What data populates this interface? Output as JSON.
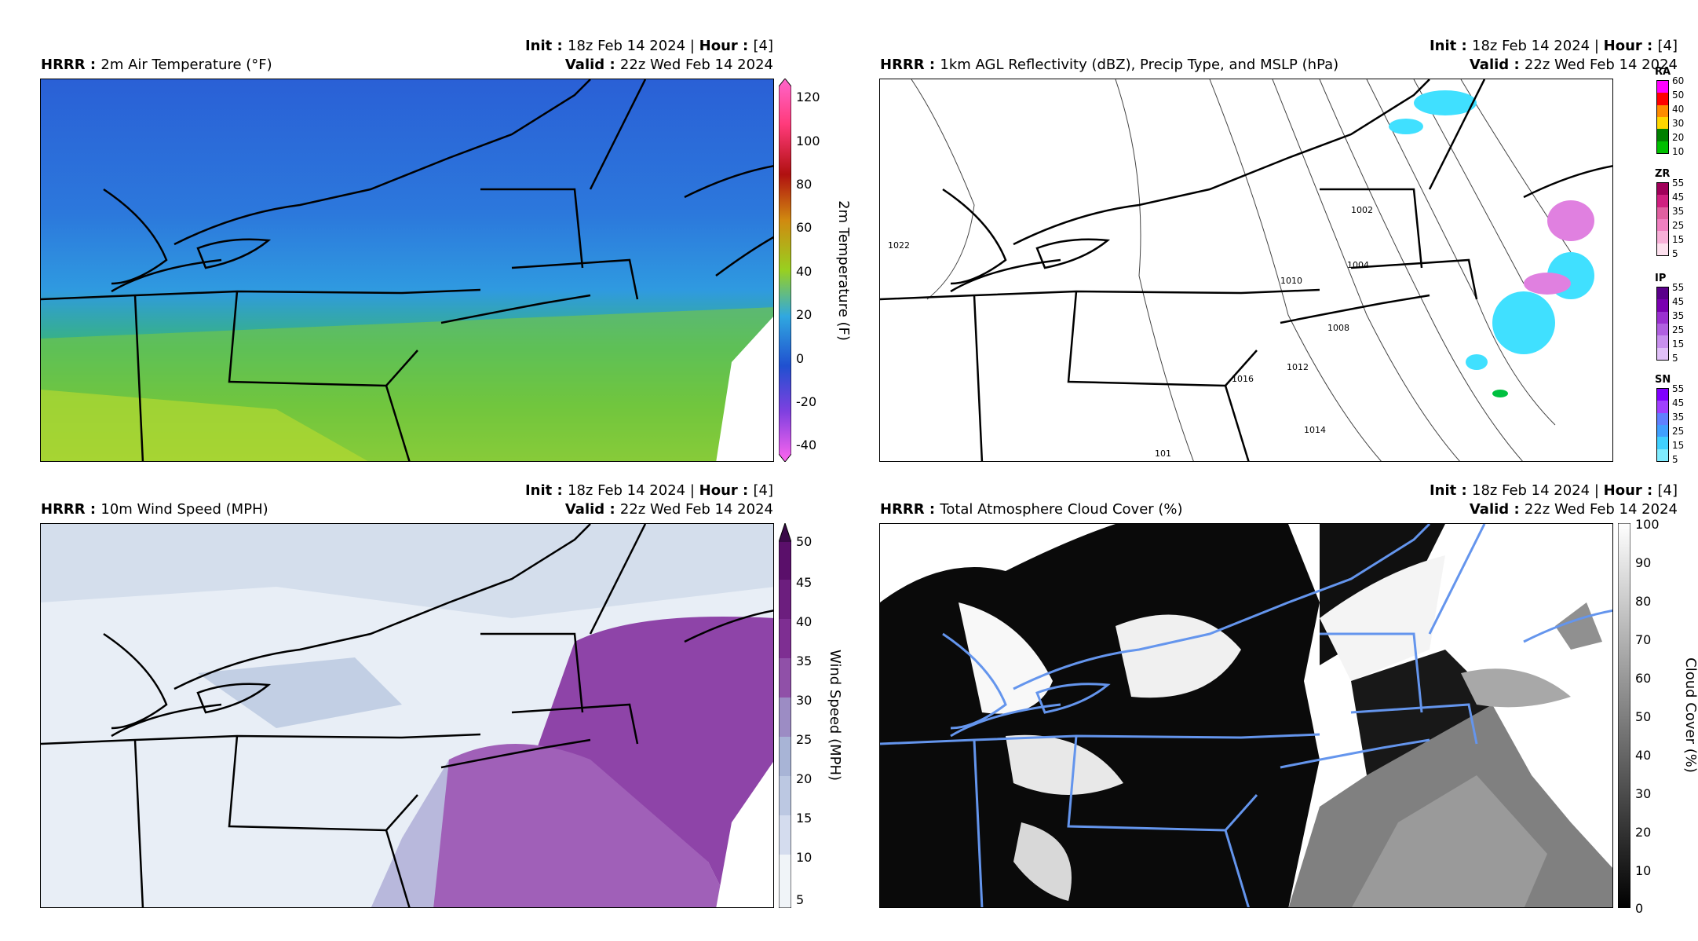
{
  "panels": {
    "temp": {
      "model": "HRRR",
      "title": "2m Air Temperature (°F)",
      "init_label": "Init",
      "init": "18z Feb 14 2024",
      "hour_label": "Hour",
      "hour": "[4]",
      "valid_label": "Valid",
      "valid": "22z Wed Feb 14 2024",
      "cbar_label": "2m Temperature (F)",
      "ticks": [
        "120",
        "100",
        "80",
        "60",
        "40",
        "20",
        "0",
        "-20",
        "-40"
      ]
    },
    "refl": {
      "model": "HRRR",
      "title": "1km AGL Reflectivity (dBZ), Precip Type, and MSLP (hPa)",
      "init_label": "Init",
      "init": "18z Feb 14 2024",
      "hour_label": "Hour",
      "hour": "[4]",
      "valid_label": "Valid",
      "valid": "22z Wed Feb 14 2024",
      "isobars": [
        "1022",
        "1016",
        "1012",
        "1014",
        "1010",
        "1008",
        "1004",
        "1002",
        "101"
      ],
      "types": [
        {
          "code": "RA",
          "ticks": [
            "60",
            "50",
            "40",
            "30",
            "20",
            "10"
          ],
          "colors": [
            "#ff00ff",
            "#ff0000",
            "#ff8c00",
            "#ffd700",
            "#008000",
            "#00c000"
          ]
        },
        {
          "code": "ZR",
          "ticks": [
            "55",
            "45",
            "35",
            "25",
            "15",
            "5"
          ],
          "colors": [
            "#a0005a",
            "#d02080",
            "#e060a0",
            "#f080c0",
            "#f8b0d8",
            "#fde0ee"
          ]
        },
        {
          "code": "IP",
          "ticks": [
            "55",
            "45",
            "35",
            "25",
            "15",
            "5"
          ],
          "colors": [
            "#5a008a",
            "#7a00b0",
            "#9a30d0",
            "#b060e0",
            "#c890ee",
            "#e0c0f8"
          ]
        },
        {
          "code": "SN",
          "ticks": [
            "55",
            "45",
            "35",
            "25",
            "15",
            "5"
          ],
          "colors": [
            "#8000ff",
            "#a040ff",
            "#6080ff",
            "#40a0ff",
            "#40d0ff",
            "#80ecff"
          ]
        }
      ]
    },
    "wind": {
      "model": "HRRR",
      "title": "10m Wind Speed (MPH)",
      "init_label": "Init",
      "init": "18z Feb 14 2024",
      "hour_label": "Hour",
      "hour": "[4]",
      "valid_label": "Valid",
      "valid": "22z Wed Feb 14 2024",
      "cbar_label": "Wind Speed (MPH)",
      "ticks": [
        "50",
        "45",
        "40",
        "35",
        "30",
        "25",
        "20",
        "15",
        "10",
        "5"
      ]
    },
    "cloud": {
      "model": "HRRR",
      "title": "Total Atmosphere Cloud Cover (%)",
      "init_label": "Init",
      "init": "18z Feb 14 2024",
      "hour_label": "Hour",
      "hour": "[4]",
      "valid_label": "Valid",
      "valid": "22z Wed Feb 14 2024",
      "cbar_label": "Cloud Cover (%)",
      "ticks": [
        "100",
        "90",
        "80",
        "70",
        "60",
        "50",
        "40",
        "30",
        "20",
        "10",
        "0"
      ]
    }
  },
  "colors": {
    "border_black": "#000000",
    "border_blue": "#6495ed",
    "temp_cold": "#2a6ed8",
    "temp_mid": "#2f9ae0",
    "temp_warm": "#58c04a",
    "wind_low": "#e8eef6",
    "wind_high": "#8e44a8"
  }
}
